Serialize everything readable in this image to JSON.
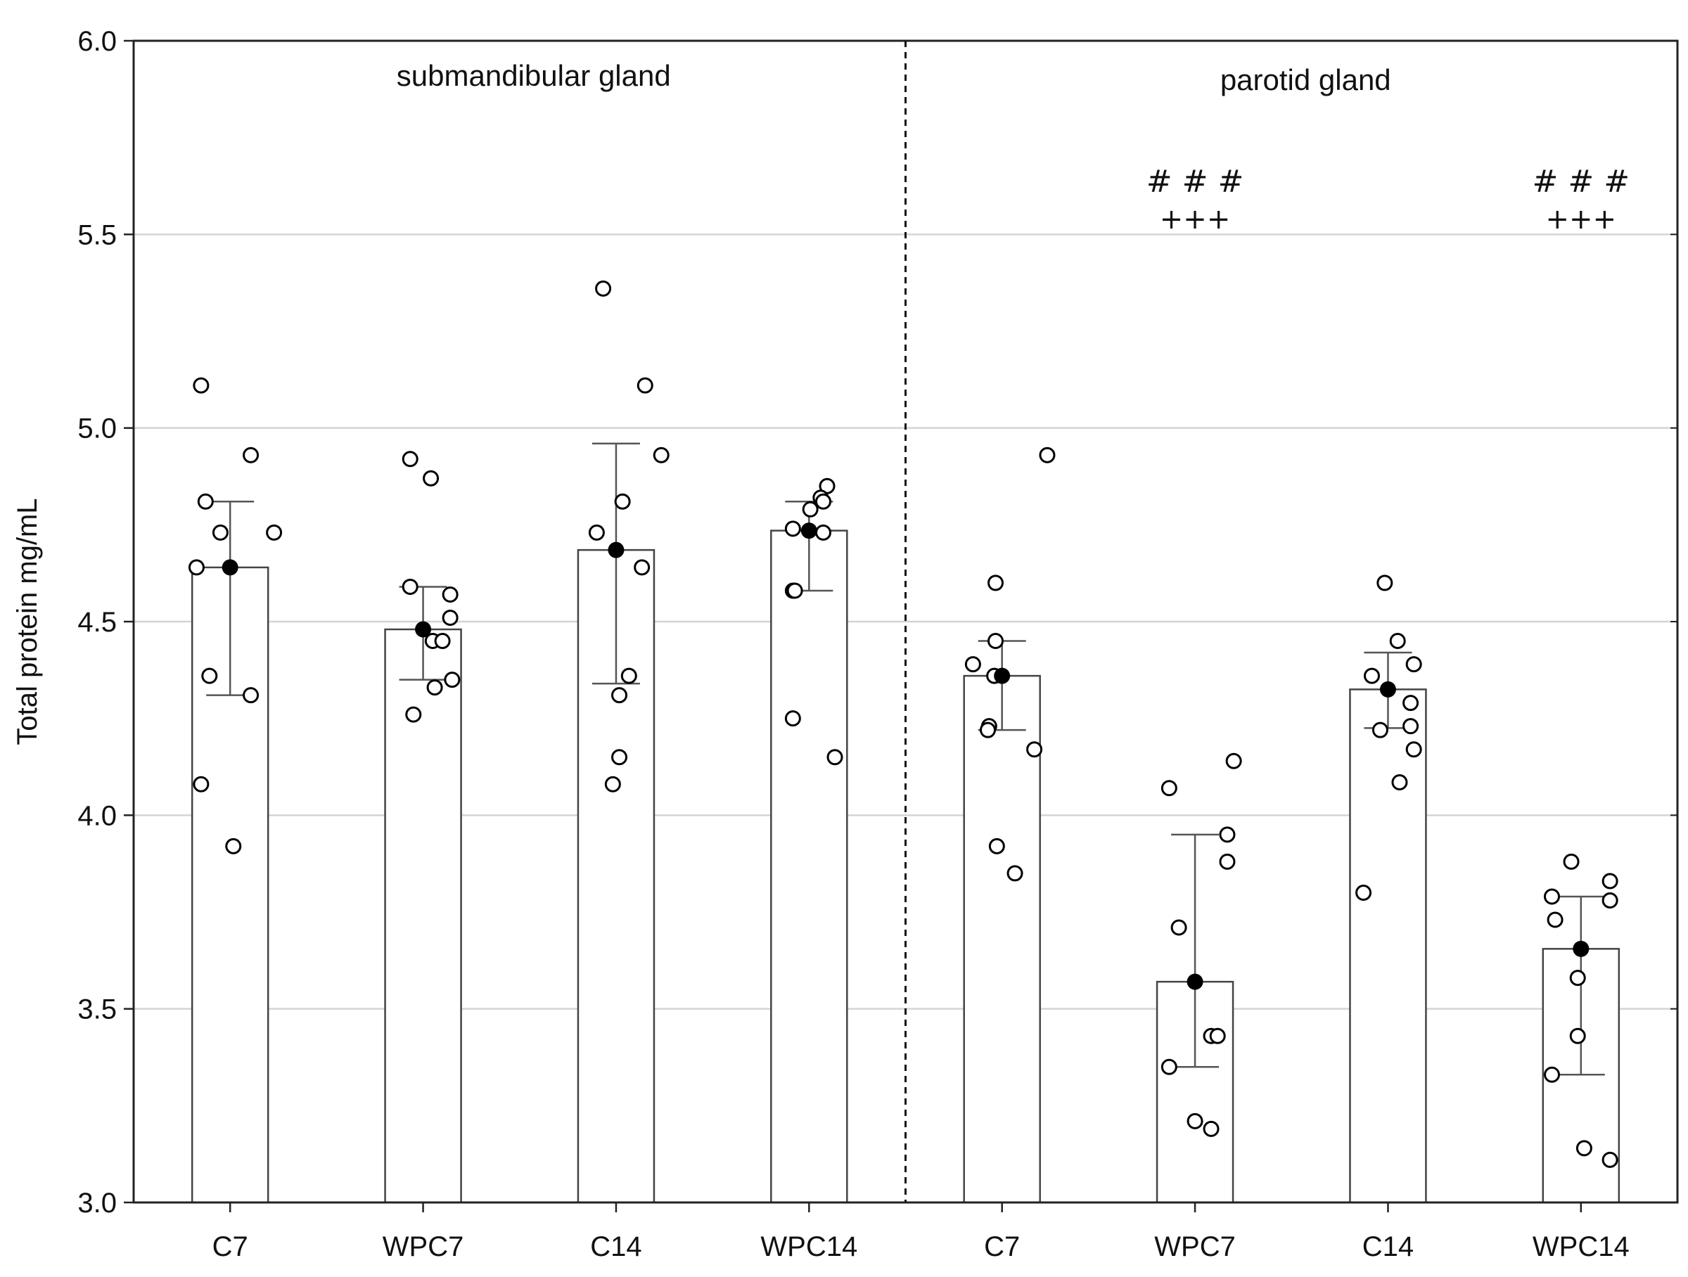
{
  "chart_data": {
    "type": "bar",
    "title": "",
    "xlabel": "",
    "ylabel": "Total protein mg/mL",
    "ylim": [
      3.0,
      6.0
    ],
    "yticks": [
      "3.0",
      "3.5",
      "4.0",
      "4.5",
      "5.0",
      "5.5",
      "6.0"
    ],
    "grid": true,
    "groups": [
      {
        "label": "submandibular gland",
        "bars": [
          {
            "category": "C7",
            "mean": 4.64,
            "sd_low": 4.31,
            "sd_high": 4.81,
            "sig_top": "",
            "sig_bottom": "",
            "points": [
              5.11,
              4.93,
              4.81,
              4.73,
              4.73,
              4.64,
              4.36,
              4.31,
              4.08,
              3.92
            ]
          },
          {
            "category": "WPC7",
            "mean": 4.48,
            "sd_low": 4.35,
            "sd_high": 4.59,
            "sig_top": "",
            "sig_bottom": "",
            "points": [
              4.92,
              4.87,
              4.59,
              4.57,
              4.51,
              4.45,
              4.45,
              4.35,
              4.33,
              4.26
            ]
          },
          {
            "category": "C14",
            "mean": 4.685,
            "sd_low": 4.34,
            "sd_high": 4.96,
            "sig_top": "",
            "sig_bottom": "",
            "points": [
              5.36,
              5.11,
              4.93,
              4.81,
              4.73,
              4.64,
              4.36,
              4.31,
              4.15,
              4.08
            ]
          },
          {
            "category": "WPC14",
            "mean": 4.735,
            "sd_low": 4.58,
            "sd_high": 4.81,
            "sig_top": "",
            "sig_bottom": "",
            "points": [
              4.85,
              4.82,
              4.81,
              4.79,
              4.74,
              4.73,
              4.58,
              4.58,
              4.25,
              4.15
            ]
          }
        ]
      },
      {
        "label": "parotid gland",
        "bars": [
          {
            "category": "C7",
            "mean": 4.36,
            "sd_low": 4.22,
            "sd_high": 4.45,
            "sig_top": "",
            "sig_bottom": "",
            "points": [
              4.93,
              4.6,
              4.45,
              4.39,
              4.36,
              4.23,
              4.22,
              4.17,
              3.92,
              3.85
            ]
          },
          {
            "category": "WPC7",
            "mean": 3.57,
            "sd_low": 3.35,
            "sd_high": 3.95,
            "sig_top": "# # #",
            "sig_bottom": "+++",
            "points": [
              4.14,
              4.07,
              3.95,
              3.88,
              3.71,
              3.43,
              3.43,
              3.35,
              3.21,
              3.19
            ]
          },
          {
            "category": "C14",
            "mean": 4.325,
            "sd_low": 4.225,
            "sd_high": 4.42,
            "sig_top": "",
            "sig_bottom": "",
            "points": [
              4.6,
              4.45,
              4.39,
              4.36,
              4.29,
              4.23,
              4.22,
              4.17,
              4.085,
              3.8
            ]
          },
          {
            "category": "WPC14",
            "mean": 3.655,
            "sd_low": 3.33,
            "sd_high": 3.79,
            "sig_top": "# # #",
            "sig_bottom": "+++",
            "points": [
              3.88,
              3.83,
              3.79,
              3.78,
              3.73,
              3.58,
              3.43,
              3.33,
              3.14,
              3.11
            ]
          }
        ]
      }
    ],
    "colors": {
      "bar_fill": "#ffffff",
      "bar_stroke": "#444444",
      "grid": "#d4d4d4",
      "axis": "#222222",
      "mean_marker": "#000000",
      "point_fill": "#ffffff",
      "point_stroke": "#000000"
    }
  }
}
